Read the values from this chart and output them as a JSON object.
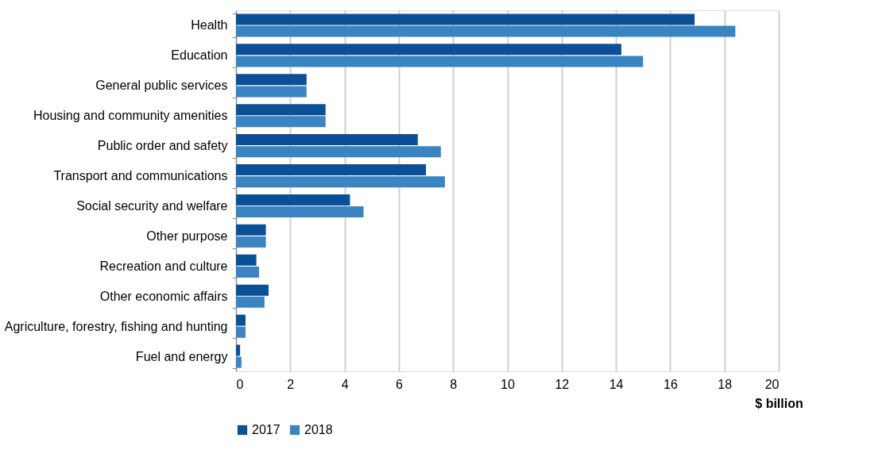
{
  "chart_data": {
    "type": "bar",
    "orientation": "horizontal",
    "xlabel": "$ billion",
    "categories": [
      "Health",
      "Education",
      "General public services",
      "Housing and community amenities",
      "Public order and safety",
      "Transport and communications",
      "Social security and welfare",
      "Other purpose",
      "Recreation and culture",
      "Other economic affairs",
      "Agriculture, forestry, fishing and hunting",
      "Fuel and energy"
    ],
    "series": [
      {
        "name": "2017",
        "color": "#0b4f96",
        "values": [
          16.9,
          14.2,
          2.6,
          3.3,
          6.7,
          7.0,
          4.2,
          1.1,
          0.75,
          1.2,
          0.35,
          0.15
        ]
      },
      {
        "name": "2018",
        "color": "#3a84c1",
        "values": [
          18.4,
          15.0,
          2.6,
          3.3,
          7.55,
          7.7,
          4.7,
          1.1,
          0.85,
          1.05,
          0.35,
          0.2
        ]
      }
    ],
    "xlim": [
      0,
      20
    ],
    "xticks": [
      0,
      2,
      4,
      6,
      8,
      10,
      12,
      14,
      16,
      18,
      20
    ],
    "grid": "x",
    "legend": "bottom"
  }
}
